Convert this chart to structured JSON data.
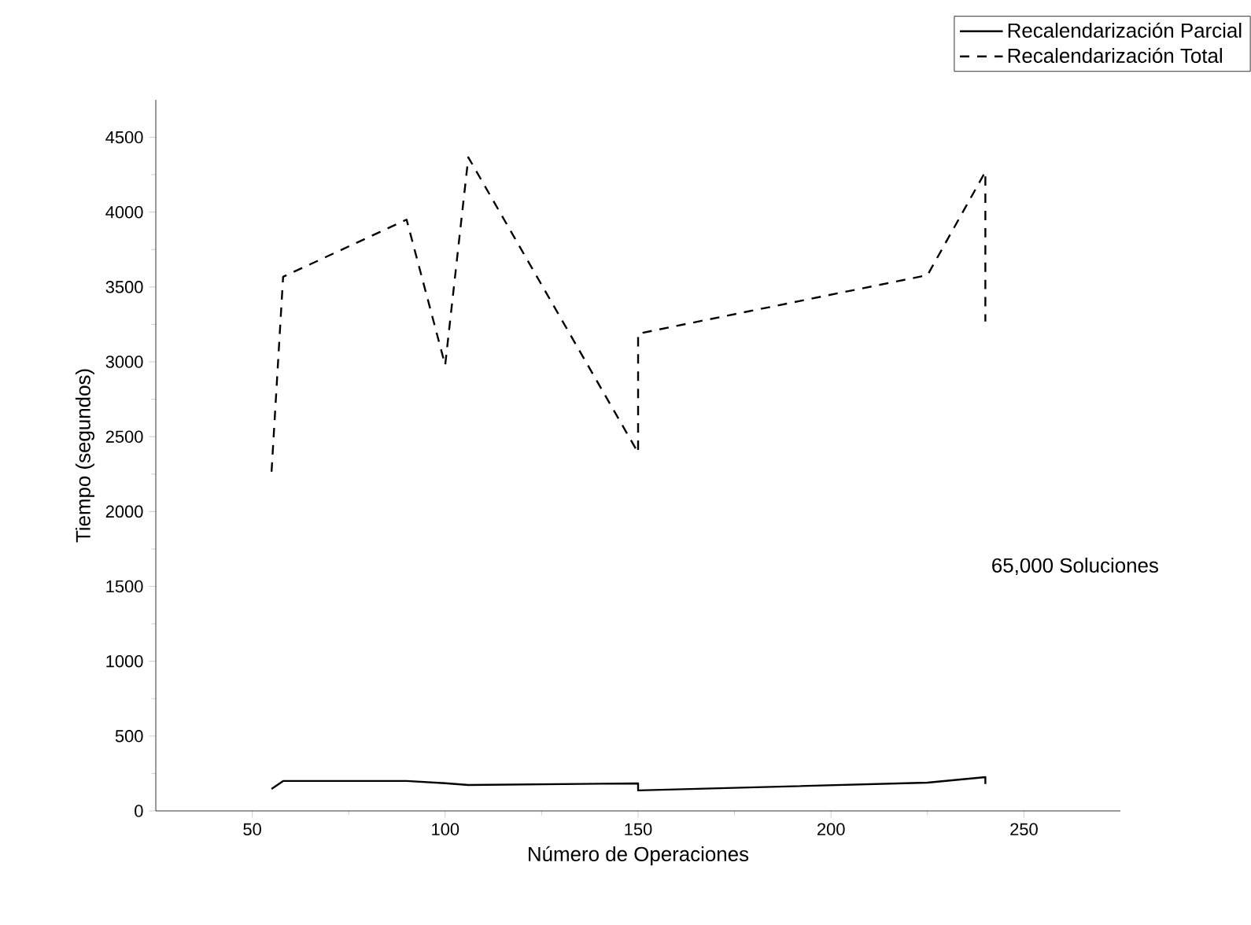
{
  "chart_data": {
    "type": "line",
    "xlabel": "Número de Operaciones",
    "ylabel": "Tiempo (segundos)",
    "x": [
      55,
      58,
      90,
      100,
      106,
      150,
      150,
      225,
      240,
      240
    ],
    "series": [
      {
        "name": "Recalendarización Parcial",
        "color": "#000000",
        "line_style": "solid",
        "values": [
          147,
          200,
          200,
          185,
          173,
          184,
          137,
          189,
          226,
          180
        ]
      },
      {
        "name": "Recalendarización Total",
        "color": "#000000",
        "line_style": "dashed",
        "values": [
          2266,
          3568,
          3950,
          2978,
          4366,
          2393,
          3188,
          3579,
          4270,
          3270
        ]
      }
    ],
    "xlim": [
      25,
      275
    ],
    "xticks": [
      50,
      100,
      150,
      200,
      250
    ],
    "ylim": [
      0,
      4750
    ],
    "yticks": [
      0,
      500,
      1000,
      1500,
      2000,
      2500,
      3000,
      3500,
      4000,
      4500
    ],
    "legend": "top right",
    "annotations": [
      "65,000 Soluciones"
    ]
  }
}
